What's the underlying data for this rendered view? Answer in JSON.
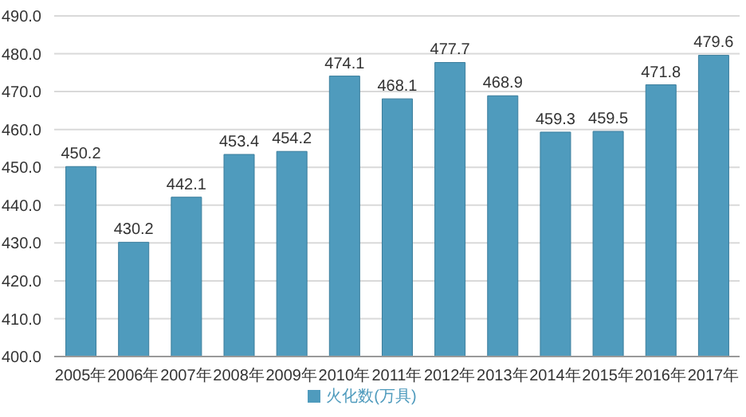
{
  "chart_data": {
    "type": "bar",
    "categories": [
      "2005年",
      "2006年",
      "2007年",
      "2008年",
      "2009年",
      "2010年",
      "2011年",
      "2012年",
      "2013年",
      "2014年",
      "2015年",
      "2016年",
      "2017年"
    ],
    "series": [
      {
        "name": "火化数(万具)",
        "color": "#4f9bbd",
        "values": [
          450.2,
          430.2,
          442.1,
          453.4,
          454.2,
          474.1,
          468.1,
          477.7,
          468.9,
          459.3,
          459.5,
          471.8,
          479.6
        ]
      }
    ],
    "ylim": [
      400,
      490
    ],
    "yticks": [
      {
        "value": 400,
        "label": "400.0"
      },
      {
        "value": 410,
        "label": "410.0"
      },
      {
        "value": 420,
        "label": "420.0"
      },
      {
        "value": 430,
        "label": "430.0"
      },
      {
        "value": 440,
        "label": "440.0"
      },
      {
        "value": 450,
        "label": "450.0"
      },
      {
        "value": 460,
        "label": "460.0"
      },
      {
        "value": 470,
        "label": "470.0"
      },
      {
        "value": 480,
        "label": "480.0"
      },
      {
        "value": 490,
        "label": "490.0"
      }
    ],
    "grid": "y",
    "legend": "bottom",
    "data_labels": true
  }
}
